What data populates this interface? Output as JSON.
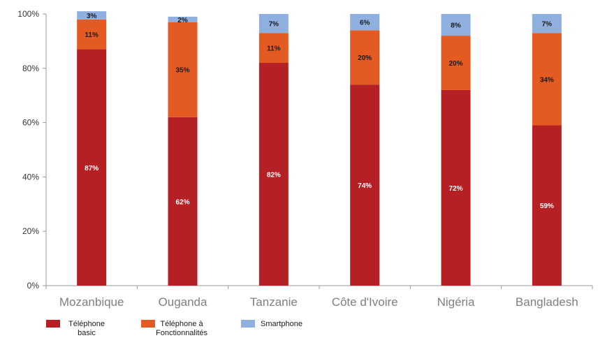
{
  "chart_data": {
    "type": "bar",
    "stacked": true,
    "categories": [
      "Mozanbique",
      "Ouganda",
      "Tanzanie",
      "Côte d'Ivoire",
      "Nigéria",
      "Bangladesh"
    ],
    "series": [
      {
        "name": "Téléphone basic",
        "color": "#b52025",
        "values": [
          87,
          62,
          82,
          74,
          72,
          59
        ],
        "labels": [
          "87%",
          "62%",
          "82%",
          "74%",
          "72%",
          "59%"
        ]
      },
      {
        "name": "Téléphone à Fonctionnalités",
        "color": "#e35a22",
        "values": [
          11,
          35,
          11,
          20,
          20,
          34
        ],
        "labels": [
          "11%",
          "35%",
          "11%",
          "20%",
          "20%",
          "34%"
        ]
      },
      {
        "name": "Smartphone",
        "color": "#8fb0de",
        "values": [
          3,
          2,
          7,
          6,
          8,
          7
        ],
        "labels": [
          "3%",
          "2%",
          "7%",
          "6%",
          "8%",
          "7%"
        ]
      }
    ],
    "y_ticks": [
      "0%",
      "20%",
      "40%",
      "60%",
      "80%",
      "100%"
    ],
    "ylim": [
      0,
      100
    ],
    "grid": false,
    "legend_position": "bottom-left",
    "title": "",
    "xlabel": "",
    "ylabel": ""
  },
  "legend": {
    "items": [
      {
        "line1": "Téléphone",
        "line2": "basic",
        "color": "#b52025"
      },
      {
        "line1": "Téléphone à",
        "line2": "Fonctionnalités",
        "color": "#e35a22"
      },
      {
        "line1": "Smartphone",
        "line2": "",
        "color": "#8fb0de"
      }
    ]
  }
}
